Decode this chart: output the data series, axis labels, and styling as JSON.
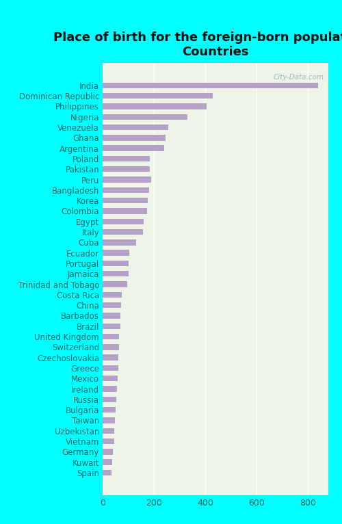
{
  "title": "Place of birth for the foreign-born population -\nCountries",
  "categories": [
    "India",
    "Dominican Republic",
    "Philippines",
    "Nigeria",
    "Venezuela",
    "Ghana",
    "Argentina",
    "Poland",
    "Pakistan",
    "Peru",
    "Bangladesh",
    "Korea",
    "Colombia",
    "Egypt",
    "Italy",
    "Cuba",
    "Ecuador",
    "Portugal",
    "Jamaica",
    "Trinidad and Tobago",
    "Costa Rica",
    "China",
    "Barbados",
    "Brazil",
    "United Kingdom",
    "Switzerland",
    "Czechoslovakia",
    "Greece",
    "Mexico",
    "Ireland",
    "Russia",
    "Bulgaria",
    "Taiwan",
    "Uzbekistan",
    "Vietnam",
    "Germany",
    "Kuwait",
    "Spain"
  ],
  "values": [
    840,
    430,
    405,
    330,
    255,
    245,
    240,
    185,
    183,
    190,
    180,
    175,
    173,
    160,
    158,
    130,
    105,
    100,
    100,
    95,
    75,
    72,
    70,
    68,
    65,
    63,
    62,
    60,
    58,
    55,
    53,
    50,
    48,
    46,
    44,
    40,
    37,
    35
  ],
  "bar_color": "#b5a0c8",
  "background_color": "#00ffff",
  "plot_bg_color": "#eef4e8",
  "title_color": "#111111",
  "label_color": "#006666",
  "tick_color": "#006666",
  "xlim": [
    0,
    880
  ],
  "xticks": [
    0,
    200,
    400,
    600,
    800
  ],
  "title_fontsize": 13,
  "label_fontsize": 8.5,
  "tick_fontsize": 9,
  "watermark": "City-Data.com"
}
